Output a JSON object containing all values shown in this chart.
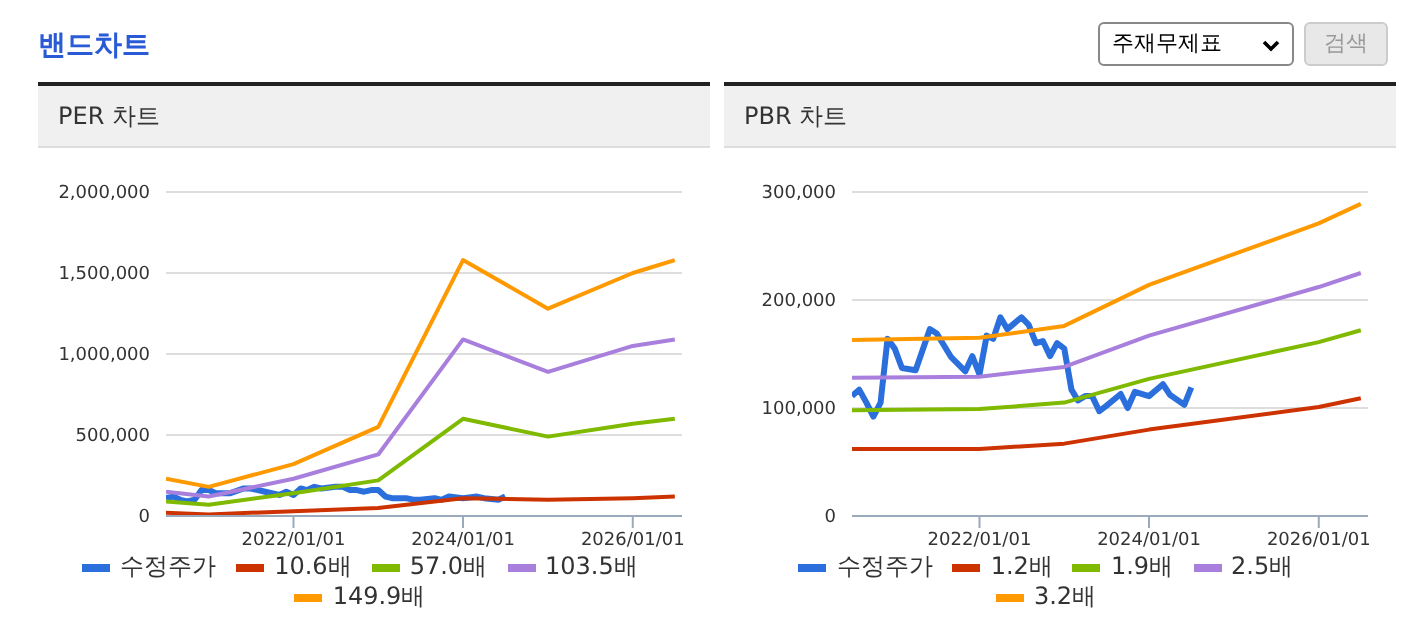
{
  "chart_data": [
    {
      "type": "line",
      "title": "PER 차트",
      "annotations": [
        "밴드차트",
        "주재무제표",
        "검색"
      ],
      "xlim": [
        "2020-07",
        "2026-08"
      ],
      "xticks": [
        {
          "value": "2022-01-01",
          "label": "2022/01/01"
        },
        {
          "value": "2024-01-01",
          "label": "2024/01/01"
        },
        {
          "value": "2026-01-01",
          "label": "2026/01/01"
        }
      ],
      "ylim": [
        0,
        2000000
      ],
      "yticks": [
        0,
        {
          "value": 500000,
          "label": "500,000"
        },
        {
          "value": 1000000,
          "label": "1,000,000"
        },
        {
          "value": 1500000,
          "label": "1,500,000"
        },
        {
          "value": 2000000,
          "label": "2,000,000"
        }
      ],
      "grid": "y",
      "legend": "bottom",
      "marker": "none",
      "series": [
        {
          "name": "수정주가",
          "color": "#2a6fdb",
          "x": [
            "2020-07",
            "2020-08",
            "2020-09",
            "2020-10",
            "2020-11",
            "2020-12",
            "2021-01",
            "2021-02",
            "2021-04",
            "2021-06",
            "2021-07",
            "2021-09",
            "2021-11",
            "2021-12",
            "2022-01",
            "2022-02",
            "2022-03",
            "2022-04",
            "2022-05",
            "2022-07",
            "2022-08",
            "2022-09",
            "2022-10",
            "2022-11",
            "2022-12",
            "2023-01",
            "2023-02",
            "2023-03",
            "2023-04",
            "2023-05",
            "2023-06",
            "2023-07",
            "2023-09",
            "2023-10",
            "2023-11",
            "2024-01",
            "2024-03",
            "2024-04",
            "2024-06",
            "2024-07"
          ],
          "values": [
            110000,
            120000,
            100000,
            90000,
            100000,
            160000,
            160000,
            140000,
            140000,
            170000,
            170000,
            150000,
            130000,
            150000,
            130000,
            170000,
            160000,
            180000,
            170000,
            180000,
            180000,
            160000,
            160000,
            150000,
            160000,
            160000,
            120000,
            110000,
            110000,
            110000,
            100000,
            100000,
            110000,
            100000,
            120000,
            110000,
            120000,
            110000,
            100000,
            120000
          ]
        },
        {
          "name": "10.6배",
          "color": "#cc3300",
          "x": [
            "2020-07",
            "2021-01",
            "2022-01",
            "2023-01",
            "2024-01",
            "2025-01",
            "2026-01",
            "2026-07"
          ],
          "values": [
            20000,
            10000,
            30000,
            50000,
            110000,
            100000,
            110000,
            120000
          ]
        },
        {
          "name": "57.0배",
          "color": "#7fba00",
          "x": [
            "2020-07",
            "2021-01",
            "2022-01",
            "2023-01",
            "2024-01",
            "2025-01",
            "2026-01",
            "2026-07"
          ],
          "values": [
            90000,
            70000,
            140000,
            220000,
            600000,
            490000,
            570000,
            600000
          ]
        },
        {
          "name": "103.5배",
          "color": "#a87fdd",
          "x": [
            "2020-07",
            "2021-01",
            "2022-01",
            "2023-01",
            "2024-01",
            "2025-01",
            "2026-01",
            "2026-07"
          ],
          "values": [
            150000,
            120000,
            230000,
            380000,
            1090000,
            890000,
            1050000,
            1090000
          ]
        },
        {
          "name": "149.9배",
          "color": "#ff9900",
          "x": [
            "2020-07",
            "2021-01",
            "2022-01",
            "2023-01",
            "2024-01",
            "2025-01",
            "2026-01",
            "2026-07"
          ],
          "values": [
            230000,
            180000,
            320000,
            550000,
            1580000,
            1280000,
            1500000,
            1580000
          ]
        }
      ]
    },
    {
      "type": "line",
      "title": "PBR 차트",
      "xlim": [
        "2020-07",
        "2026-08"
      ],
      "xticks": [
        {
          "value": "2022-01-01",
          "label": "2022/01/01"
        },
        {
          "value": "2024-01-01",
          "label": "2024/01/01"
        },
        {
          "value": "2026-01-01",
          "label": "2026/01/01"
        }
      ],
      "ylim": [
        0,
        300000
      ],
      "yticks": [
        0,
        {
          "value": 100000,
          "label": "100,000"
        },
        {
          "value": 200000,
          "label": "200,000"
        },
        {
          "value": 300000,
          "label": "300,000"
        }
      ],
      "grid": "y",
      "legend": "bottom",
      "marker": "none",
      "series": [
        {
          "name": "수정주가",
          "color": "#2a6fdb",
          "x": [
            "2020-07",
            "2020-08",
            "2020-09",
            "2020-10",
            "2020-11",
            "2020-12",
            "2021-01",
            "2021-02",
            "2021-04",
            "2021-06",
            "2021-07",
            "2021-09",
            "2021-11",
            "2021-12",
            "2022-01",
            "2022-02",
            "2022-03",
            "2022-04",
            "2022-05",
            "2022-07",
            "2022-08",
            "2022-09",
            "2022-10",
            "2022-11",
            "2022-12",
            "2023-01",
            "2023-02",
            "2023-03",
            "2023-04",
            "2023-05",
            "2023-06",
            "2023-07",
            "2023-09",
            "2023-10",
            "2023-11",
            "2024-01",
            "2024-03",
            "2024-04",
            "2024-06",
            "2024-07"
          ],
          "values": [
            111000,
            117000,
            105000,
            92000,
            105000,
            164000,
            155000,
            137000,
            135000,
            173000,
            169000,
            147000,
            134000,
            148000,
            131000,
            167000,
            164000,
            184000,
            173000,
            184000,
            177000,
            160000,
            162000,
            148000,
            160000,
            155000,
            117000,
            107000,
            111000,
            111000,
            97000,
            102000,
            113000,
            100000,
            115000,
            111000,
            122000,
            112000,
            103000,
            119000
          ]
        },
        {
          "name": "1.2배",
          "color": "#cc3300",
          "x": [
            "2020-07",
            "2022-01",
            "2023-01",
            "2024-01",
            "2026-01",
            "2026-07"
          ],
          "values": [
            62000,
            62000,
            67000,
            80000,
            101000,
            109000
          ]
        },
        {
          "name": "1.9배",
          "color": "#7fba00",
          "x": [
            "2020-07",
            "2022-01",
            "2023-01",
            "2024-01",
            "2026-01",
            "2026-07"
          ],
          "values": [
            98000,
            99000,
            105000,
            127000,
            161000,
            172000
          ]
        },
        {
          "name": "2.5배",
          "color": "#a87fdd",
          "x": [
            "2020-07",
            "2022-01",
            "2023-01",
            "2024-01",
            "2026-01",
            "2026-07"
          ],
          "values": [
            128000,
            129000,
            138000,
            167000,
            212000,
            225000
          ]
        },
        {
          "name": "3.2배",
          "color": "#ff9900",
          "x": [
            "2020-07",
            "2022-01",
            "2023-01",
            "2024-01",
            "2026-01",
            "2026-07"
          ],
          "values": [
            163000,
            165000,
            176000,
            214000,
            271000,
            289000
          ]
        }
      ]
    }
  ]
}
